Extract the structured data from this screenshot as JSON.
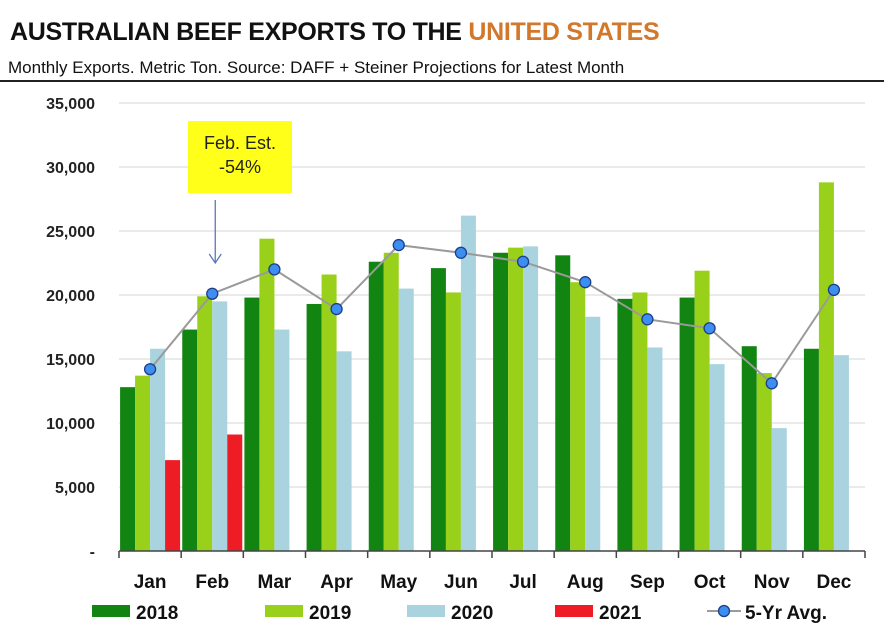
{
  "header": {
    "title_main": "AUSTRALIAN BEEF EXPORTS TO THE ",
    "title_highlight": "UNITED STATES",
    "subtitle": "Monthly Exports.  Metric Ton.  Source: DAFF + Steiner Projections for Latest Month",
    "highlight_color": "#d2782c"
  },
  "annotation": {
    "line1": "Feb. Est.",
    "line2": "-54%",
    "month": "Feb",
    "bg_color": "#ffff1a"
  },
  "chart_data": {
    "type": "bar",
    "categories": [
      "Jan",
      "Feb",
      "Mar",
      "Apr",
      "May",
      "Jun",
      "Jul",
      "Aug",
      "Sep",
      "Oct",
      "Nov",
      "Dec"
    ],
    "ylim": [
      0,
      35000
    ],
    "yticks": [
      0,
      5000,
      10000,
      15000,
      20000,
      25000,
      30000,
      35000
    ],
    "ytick_labels": [
      "-",
      "5,000",
      "10,000",
      "15,000",
      "20,000",
      "25,000",
      "30,000",
      "35,000"
    ],
    "grid": true,
    "legend_position": "bottom",
    "series": [
      {
        "name": "2018",
        "kind": "bar",
        "color": "#128412",
        "values": [
          12800,
          17300,
          19800,
          19300,
          22600,
          22100,
          23300,
          23100,
          19700,
          19800,
          16000,
          15800
        ]
      },
      {
        "name": "2019",
        "kind": "bar",
        "color": "#99d01a",
        "values": [
          13700,
          19900,
          24400,
          21600,
          23300,
          20200,
          23700,
          21000,
          20200,
          21900,
          13900,
          28800
        ]
      },
      {
        "name": "2020",
        "kind": "bar",
        "color": "#a9d3df",
        "values": [
          15800,
          19500,
          17300,
          15600,
          20500,
          26200,
          23800,
          18300,
          15900,
          14600,
          9600,
          15300
        ]
      },
      {
        "name": "2021",
        "kind": "bar",
        "color": "#ee1c25",
        "values": [
          7100,
          9100,
          null,
          null,
          null,
          null,
          null,
          null,
          null,
          null,
          null,
          null
        ]
      },
      {
        "name": "5-Yr Avg.",
        "kind": "line",
        "color": "#9a9a9a",
        "marker_color": "#3d8ef0",
        "values": [
          14200,
          20100,
          22000,
          18900,
          23900,
          23300,
          22600,
          21000,
          18100,
          17400,
          13100,
          20400
        ]
      }
    ]
  }
}
